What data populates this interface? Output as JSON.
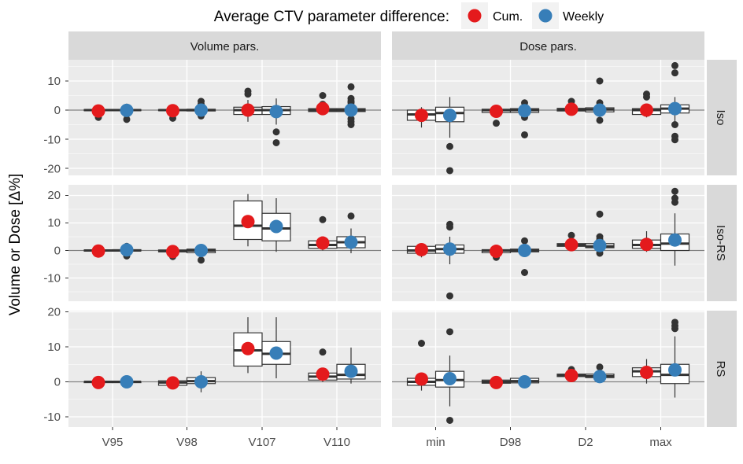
{
  "chart_data": {
    "type": "box",
    "legend": {
      "title": "Average CTV parameter difference:",
      "position": "top",
      "entries": [
        {
          "name": "Cum.",
          "color": "#E41A1C"
        },
        {
          "name": "Weekly",
          "color": "#377EB8"
        }
      ]
    },
    "ylabel": "Volume or Dose [Δ%]",
    "columns": [
      {
        "label": "Volume pars.",
        "categories": [
          "V95",
          "V98",
          "V107",
          "V110"
        ]
      },
      {
        "label": "Dose pars.",
        "categories": [
          "min",
          "D98",
          "D2",
          "max"
        ]
      }
    ],
    "rows": [
      {
        "label": "Iso",
        "ylim": [
          -23,
          17
        ],
        "yticks": [
          -20,
          -10,
          0,
          10
        ]
      },
      {
        "label": "Iso-RS",
        "ylim": [
          -18,
          24
        ],
        "yticks": [
          -10,
          0,
          10,
          20
        ]
      },
      {
        "label": "RS",
        "ylim": [
          -12,
          21
        ],
        "yticks": [
          -10,
          0,
          10,
          20
        ]
      }
    ],
    "series_names": [
      "Cum.",
      "Weekly"
    ],
    "colors": {
      "Cum.": "#E41A1C",
      "Weekly": "#377EB8",
      "box_fill": "#FFFFFF",
      "box_line": "#333333",
      "panel_bg": "#EBEBEB",
      "strip_bg": "#D9D9D9",
      "grid": "#FFFFFF",
      "zero_line": "#808080"
    },
    "panels": [
      {
        "row": "Iso",
        "col": "Volume pars.",
        "groups": [
          {
            "category": "V95",
            "series": "Cum.",
            "box": [
              -0.5,
              -0.2,
              0,
              0.2,
              0.5
            ],
            "outliers": [
              -2.5,
              -1.2
            ],
            "mean": -0.3
          },
          {
            "category": "V95",
            "series": "Weekly",
            "box": [
              -0.6,
              -0.2,
              0,
              0.2,
              0.6
            ],
            "outliers": [
              -3.2,
              1.0,
              -1.4
            ],
            "mean": -0.1
          },
          {
            "category": "V98",
            "series": "Cum.",
            "box": [
              -0.6,
              -0.2,
              0,
              0.2,
              0.5
            ],
            "outliers": [
              -2.8
            ],
            "mean": -0.2
          },
          {
            "category": "V98",
            "series": "Weekly",
            "box": [
              -0.8,
              -0.3,
              0,
              0.3,
              0.8
            ],
            "outliers": [
              3.0,
              2.0,
              -2.0
            ],
            "mean": 0.0
          },
          {
            "category": "V107",
            "series": "Cum.",
            "box": [
              -4.0,
              -1.5,
              0,
              1.0,
              3.5
            ],
            "outliers": [
              6.5,
              5.5
            ],
            "mean": 0.0
          },
          {
            "category": "V107",
            "series": "Weekly",
            "box": [
              -5.0,
              -1.5,
              0,
              1.2,
              4.0
            ],
            "outliers": [
              -7.5,
              -11.2
            ],
            "mean": -0.5
          },
          {
            "category": "V110",
            "series": "Cum.",
            "box": [
              -1.5,
              -0.5,
              0,
              0.5,
              1.5
            ],
            "outliers": [
              5.0,
              2.0
            ],
            "mean": 0.5
          },
          {
            "category": "V110",
            "series": "Weekly",
            "box": [
              -2.0,
              -0.5,
              0,
              0.5,
              2.0
            ],
            "outliers": [
              8.0,
              4.0,
              3.0,
              2.5,
              -3.0,
              -4.0,
              -5.0
            ],
            "mean": 0.0
          }
        ]
      },
      {
        "row": "Iso",
        "col": "Dose pars.",
        "groups": [
          {
            "category": "min",
            "series": "Cum.",
            "box": [
              -6.0,
              -3.5,
              -1.5,
              0,
              1.0
            ],
            "outliers": [],
            "mean": -1.8
          },
          {
            "category": "min",
            "series": "Weekly",
            "box": [
              -9.5,
              -4.0,
              -1.0,
              1.0,
              4.5
            ],
            "outliers": [
              -12.5,
              -20.8
            ],
            "mean": -1.8
          },
          {
            "category": "D98",
            "series": "Cum.",
            "box": [
              -2.0,
              -0.8,
              0,
              0.3,
              1.0
            ],
            "outliers": [
              -4.5
            ],
            "mean": -0.4
          },
          {
            "category": "D98",
            "series": "Weekly",
            "box": [
              -2.5,
              -0.8,
              0,
              0.5,
              1.5
            ],
            "outliers": [
              2.5,
              -2.5,
              -8.5
            ],
            "mean": -0.2
          },
          {
            "category": "D2",
            "series": "Cum.",
            "box": [
              -1.0,
              -0.3,
              0.2,
              0.6,
              1.5
            ],
            "outliers": [
              3.0
            ],
            "mean": 0.3
          },
          {
            "category": "D2",
            "series": "Weekly",
            "box": [
              -2.0,
              -0.6,
              0.2,
              0.8,
              2.0
            ],
            "outliers": [
              10.0,
              2.5,
              -3.5
            ],
            "mean": 0.0
          },
          {
            "category": "max",
            "series": "Cum.",
            "box": [
              -2.5,
              -1.5,
              0,
              0.5,
              2.0
            ],
            "outliers": [
              5.5,
              4.5
            ],
            "mean": 0.0
          },
          {
            "category": "max",
            "series": "Weekly",
            "box": [
              -4.0,
              -1.0,
              0.5,
              1.8,
              4.5
            ],
            "outliers": [
              15.3,
              12.8,
              -5.0,
              -9.0,
              -10.2
            ],
            "mean": 0.5
          }
        ]
      },
      {
        "row": "Iso-RS",
        "col": "Volume pars.",
        "groups": [
          {
            "category": "V95",
            "series": "Cum.",
            "box": [
              -0.8,
              -0.2,
              0,
              0.2,
              0.6
            ],
            "outliers": [
              -1.2
            ],
            "mean": -0.2
          },
          {
            "category": "V95",
            "series": "Weekly",
            "box": [
              -1.0,
              -0.2,
              0,
              0.3,
              1.0
            ],
            "outliers": [
              1.5,
              -2.0
            ],
            "mean": 0.2
          },
          {
            "category": "V98",
            "series": "Cum.",
            "box": [
              -1.2,
              -0.5,
              -0.2,
              0.2,
              0.8
            ],
            "outliers": [
              -2.2
            ],
            "mean": -0.4
          },
          {
            "category": "V98",
            "series": "Weekly",
            "box": [
              -2.0,
              -0.8,
              0,
              0.5,
              1.5
            ],
            "outliers": [
              -3.5
            ],
            "mean": 0.0
          },
          {
            "category": "V107",
            "series": "Cum.",
            "box": [
              1.5,
              4.0,
              9.0,
              18.0,
              20.5
            ],
            "outliers": [],
            "mean": 10.5
          },
          {
            "category": "V107",
            "series": "Weekly",
            "box": [
              -0.5,
              3.5,
              8.0,
              13.5,
              19.0
            ],
            "outliers": [],
            "mean": 8.7
          },
          {
            "category": "V110",
            "series": "Cum.",
            "box": [
              0,
              0.8,
              2.0,
              3.5,
              5.0
            ],
            "outliers": [
              11.2
            ],
            "mean": 2.7
          },
          {
            "category": "V110",
            "series": "Weekly",
            "box": [
              -1.0,
              1.0,
              3.0,
              5.0,
              8.0
            ],
            "outliers": [
              12.5
            ],
            "mean": 3.0
          }
        ]
      },
      {
        "row": "Iso-RS",
        "col": "Dose pars.",
        "groups": [
          {
            "category": "min",
            "series": "Cum.",
            "box": [
              -2.5,
              -1.0,
              0,
              1.5,
              2.5
            ],
            "outliers": [],
            "mean": 0.3
          },
          {
            "category": "min",
            "series": "Weekly",
            "box": [
              -5.0,
              -1.0,
              0.5,
              2.0,
              5.0
            ],
            "outliers": [
              9.5,
              8.5,
              -16.5
            ],
            "mean": 0.5
          },
          {
            "category": "D98",
            "series": "Cum.",
            "box": [
              -2.0,
              -0.8,
              0,
              0.3,
              0.8
            ],
            "outliers": [
              -2.5
            ],
            "mean": -0.3
          },
          {
            "category": "D98",
            "series": "Weekly",
            "box": [
              -1.5,
              -0.5,
              0,
              0.5,
              1.5
            ],
            "outliers": [
              3.5,
              -8.0
            ],
            "mean": 0.0
          },
          {
            "category": "D2",
            "series": "Cum.",
            "box": [
              0.8,
              1.5,
              2.0,
              2.5,
              3.5
            ],
            "outliers": [
              5.5
            ],
            "mean": 2.1
          },
          {
            "category": "D2",
            "series": "Weekly",
            "box": [
              -1.0,
              1.0,
              1.5,
              2.5,
              4.0
            ],
            "outliers": [
              13.2,
              5.0,
              4.0,
              -1.0
            ],
            "mean": 1.8
          },
          {
            "category": "max",
            "series": "Cum.",
            "box": [
              -0.5,
              0.8,
              2.0,
              3.8,
              7.0
            ],
            "outliers": [],
            "mean": 2.2
          },
          {
            "category": "max",
            "series": "Weekly",
            "box": [
              -5.5,
              0,
              2.5,
              6.0,
              13.5
            ],
            "outliers": [
              21.5,
              19.0,
              17.5
            ],
            "mean": 3.8
          }
        ]
      },
      {
        "row": "RS",
        "col": "Volume pars.",
        "groups": [
          {
            "category": "V95",
            "series": "Cum.",
            "box": [
              -0.3,
              -0.1,
              0,
              0.1,
              0.3
            ],
            "outliers": [],
            "mean": -0.2
          },
          {
            "category": "V95",
            "series": "Weekly",
            "box": [
              -0.5,
              -0.1,
              0,
              0.1,
              0.4
            ],
            "outliers": [],
            "mean": 0.0
          },
          {
            "category": "V98",
            "series": "Cum.",
            "box": [
              -1.5,
              -1.0,
              -0.2,
              0.3,
              1.0
            ],
            "outliers": [],
            "mean": -0.3
          },
          {
            "category": "V98",
            "series": "Weekly",
            "box": [
              -3.0,
              -0.5,
              0.2,
              1.2,
              3.0
            ],
            "outliers": [],
            "mean": 0.0
          },
          {
            "category": "V107",
            "series": "Cum.",
            "box": [
              2.5,
              4.5,
              9.0,
              14.0,
              18.5
            ],
            "outliers": [],
            "mean": 9.5
          },
          {
            "category": "V107",
            "series": "Weekly",
            "box": [
              1.0,
              5.0,
              8.0,
              11.5,
              18.5
            ],
            "outliers": [],
            "mean": 8.2
          },
          {
            "category": "V110",
            "series": "Cum.",
            "box": [
              0,
              0.5,
              1.5,
              2.5,
              4.0
            ],
            "outliers": [
              8.5
            ],
            "mean": 2.2
          },
          {
            "category": "V110",
            "series": "Weekly",
            "box": [
              -0.5,
              0.8,
              2.0,
              5.0,
              9.8
            ],
            "outliers": [],
            "mean": 3.0
          }
        ]
      },
      {
        "row": "RS",
        "col": "Dose pars.",
        "groups": [
          {
            "category": "min",
            "series": "Cum.",
            "box": [
              -2.5,
              -1.0,
              0,
              1.0,
              2.5
            ],
            "outliers": [
              11.0
            ],
            "mean": 0.8
          },
          {
            "category": "min",
            "series": "Weekly",
            "box": [
              -7.0,
              -1.5,
              0.5,
              3.0,
              7.5
            ],
            "outliers": [
              14.3,
              -11.0
            ],
            "mean": 0.9
          },
          {
            "category": "D98",
            "series": "Cum.",
            "box": [
              -0.8,
              -0.4,
              0,
              0.5,
              0.8
            ],
            "outliers": [],
            "mean": -0.2
          },
          {
            "category": "D98",
            "series": "Weekly",
            "box": [
              -1.2,
              -0.3,
              0.2,
              1.0,
              1.8
            ],
            "outliers": [],
            "mean": 0.0
          },
          {
            "category": "D2",
            "series": "Cum.",
            "box": [
              1.0,
              1.5,
              1.8,
              2.2,
              3.0
            ],
            "outliers": [
              3.5
            ],
            "mean": 1.8
          },
          {
            "category": "D2",
            "series": "Weekly",
            "box": [
              0.8,
              1.2,
              1.6,
              2.2,
              3.0
            ],
            "outliers": [
              4.2
            ],
            "mean": 1.5
          },
          {
            "category": "max",
            "series": "Cum.",
            "box": [
              -0.5,
              1.5,
              3.0,
              4.0,
              6.5
            ],
            "outliers": [],
            "mean": 2.7
          },
          {
            "category": "max",
            "series": "Weekly",
            "box": [
              -4.5,
              -0.5,
              2.0,
              5.0,
              13.0
            ],
            "outliers": [
              17.0,
              16.0,
              15.2
            ],
            "mean": 3.4
          }
        ]
      }
    ]
  }
}
